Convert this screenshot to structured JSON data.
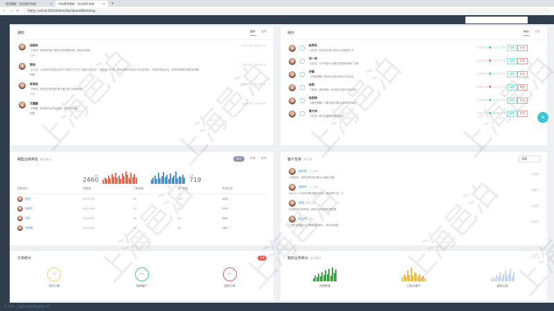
{
  "browser": {
    "tabs": [
      "首页看板 - 邑泊软件系统",
      "市场营销看板 - 邑泊软件系统"
    ],
    "url": "oa4-dj-2020/Admin/Dashboard/Marketing",
    "address_prefix": "不安全"
  },
  "notices": {
    "title": "通知",
    "tabs": [
      "收件",
      "发件"
    ],
    "items": [
      {
        "name": "邱雨欢",
        "text": "【待办】您有新的客户跟进任务需要处理，请及时查看。",
        "time": "12月10日 上午10:30",
        "link": "已读",
        "red": false
      },
      {
        "name": "贾琼",
        "text": "【公告】公司年终总结会议将于本周五下午在三楼会议室召开，请各部门负责人提前准备本年度工作总结材料，并按时参加会议，如有特殊情况请提前请假。",
        "time": "12月09日 下午03:15",
        "link": "回复",
        "red": true
      },
      {
        "name": "李思彤",
        "text": "【审批】您提交的报销申请已通过部门经理审批。",
        "time": "12月08日 下午02:10",
        "link": "已读",
        "red": false
      },
      {
        "name": "文圆圆",
        "text": "【提醒】您有新的合同待审核，请尽快处理。",
        "time": "12月07日 上午09:45",
        "link": "回复",
        "red": true
      }
    ]
  },
  "todos": {
    "title": "待办",
    "tabs": [
      "待办",
      "已办"
    ],
    "accept": "接受",
    "reject": "拒绝",
    "items": [
      {
        "name": "赵秀珍",
        "text": "【任务】完成本月客户回访记录整理汇总",
        "date": "12月10日",
        "time": "11:30 下午",
        "status": "#3cbcb0"
      },
      {
        "name": "刘一伟",
        "text": "【会议】与市场部讨论第四季度营销推广方案",
        "date": "12月09日",
        "time": "10:00 下午",
        "status": "#e05a5a"
      },
      {
        "name": "孙颖",
        "text": "【日程提醒】参加供应商年度合作洽谈会",
        "date": "12月08日",
        "time": "11:30 下午",
        "status": "#3cbcb0"
      },
      {
        "name": "徐莉",
        "text": "【审批】请审核新一批采购订单的付款申请",
        "date": "12月07日",
        "time": "10:00 下午",
        "status": "#e05a5a"
      },
      {
        "name": "张思琪",
        "text": "【跟进提醒】与重点客户确认合同续签事宜",
        "date": "12月06日",
        "time": "11:30 下午",
        "status": "#3cbcb0"
      },
      {
        "name": "周大伟",
        "text": "【任务】提交年度销售数据报表",
        "date": "12月05日",
        "time": "11:30 下午",
        "status": "#3cbcb0"
      }
    ]
  },
  "sales": {
    "title": "销售业绩排名",
    "subtitle": "按月统计",
    "tabs": [
      "本月",
      "本季",
      "本年"
    ],
    "left_label": "销售",
    "left_value": "2460",
    "right_label": "订单",
    "right_value": "719",
    "left_bars": [
      6,
      9,
      7,
      12,
      8,
      14,
      10,
      16,
      9,
      12,
      7,
      15,
      11,
      18,
      13,
      8,
      16,
      10,
      14,
      9
    ],
    "right_bars": [
      5,
      8,
      11,
      6,
      14,
      7,
      10,
      15,
      9,
      12,
      6,
      13,
      8,
      11,
      16,
      7,
      10,
      9,
      12,
      8
    ],
    "columns": [
      "销售顾问",
      "销售额",
      "订单数量",
      "客户数量",
      "完成比例"
    ],
    "rows": [
      {
        "name": "赵钦",
        "amount": "56,023元",
        "orders": "45",
        "customers": "120",
        "ratio": "30%"
      },
      {
        "name": "张丽平",
        "amount": "38,215元",
        "orders": "32",
        "customers": "24",
        "ratio": "27%"
      },
      {
        "name": "刘洋",
        "amount": "32,050元",
        "orders": "28",
        "customers": "40",
        "ratio": "35%"
      },
      {
        "name": "孙雨婷",
        "amount": "28,130元",
        "orders": "21",
        "customers": "30",
        "ratio": "18%"
      }
    ]
  },
  "support": {
    "title": "客户支持",
    "subtitle": "共12条",
    "filter": "全部",
    "items": [
      {
        "name": "赵欣然",
        "time": "3分钟前",
        "text": "订单查询，请尽快帮我处理Web端的问题",
        "status": "已处理"
      },
      {
        "name": "蒋明宇",
        "time": "1小时前",
        "text": "为什么上个月的发票还没有收到，麻烦帮忙查一下",
        "status": "处理中"
      },
      {
        "name": "李萍",
        "time": "2小时前",
        "text": "系统登录出现异常，无法正常查看报表数据",
        "status": "已处理"
      },
      {
        "name": "刘天宇",
        "time": "昨天",
        "text": "产品价格调整以后需要重新确认，请尽快回复",
        "status": "待处理"
      }
    ]
  },
  "orders": {
    "title": "订单统计",
    "badge": "订单",
    "stats": [
      {
        "label": "签约订单",
        "pct": "75%",
        "color": "#f5d36a"
      },
      {
        "label": "新增客户",
        "pct": "80%",
        "color": "#3cbcb0"
      },
      {
        "label": "退款订单",
        "pct": "40%",
        "color": "#e05a5a"
      }
    ]
  },
  "business": {
    "title": "我的业务统计",
    "subtitle": "本月统计",
    "stats": [
      {
        "label": "线索数量",
        "color": "#3aa542",
        "bars": [
          4,
          7,
          5,
          10,
          6,
          12,
          8,
          14,
          9,
          16,
          7,
          18,
          11,
          15
        ]
      },
      {
        "label": "已成交客户",
        "color": "#f0bb3a",
        "bars": [
          5,
          9,
          6,
          14,
          8,
          18,
          7,
          12,
          10,
          6,
          9,
          5,
          7,
          4
        ]
      },
      {
        "label": "跟进记录",
        "color": "#c9d6f2",
        "bars": [
          3,
          5,
          4,
          8,
          6,
          12,
          5,
          9,
          14,
          7,
          10,
          16,
          6,
          12
        ]
      }
    ]
  },
  "footer": {
    "text": "© 2020 上海邑泊信息科技有限公司"
  },
  "watermark": "上海邑泊"
}
